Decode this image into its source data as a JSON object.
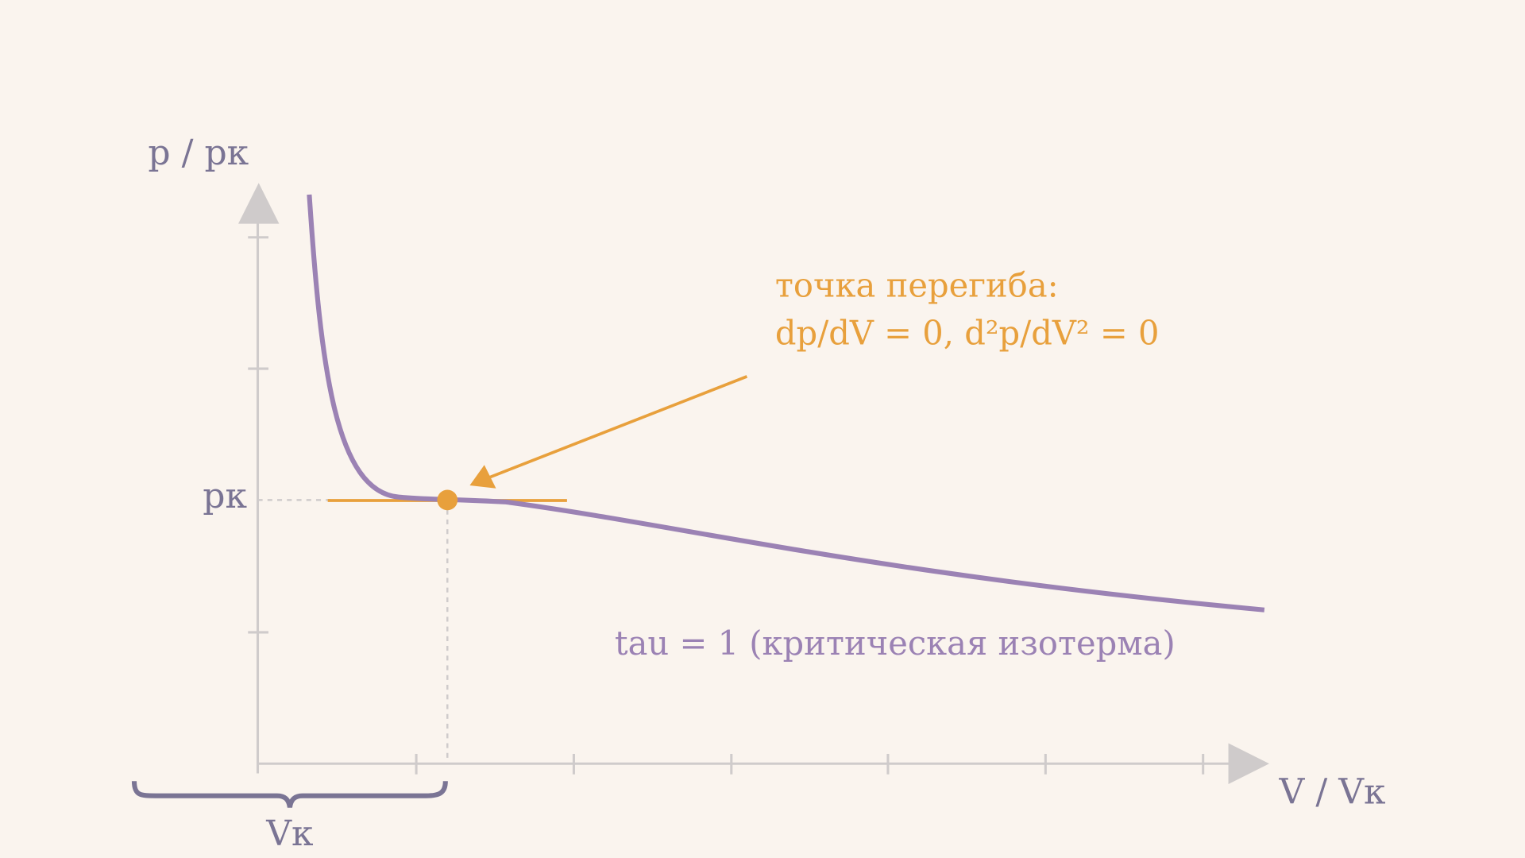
{
  "axis": {
    "y_label": "p / pк",
    "x_label": "V / Vк",
    "y_marker": "pк",
    "x_marker": "Vк"
  },
  "annotation": {
    "lines": [
      "точка перегиба:",
      "dp/dV = 0, d²p/dV² = 0"
    ]
  },
  "curve_label": "tau = 1 (критическая изотерма)"
}
